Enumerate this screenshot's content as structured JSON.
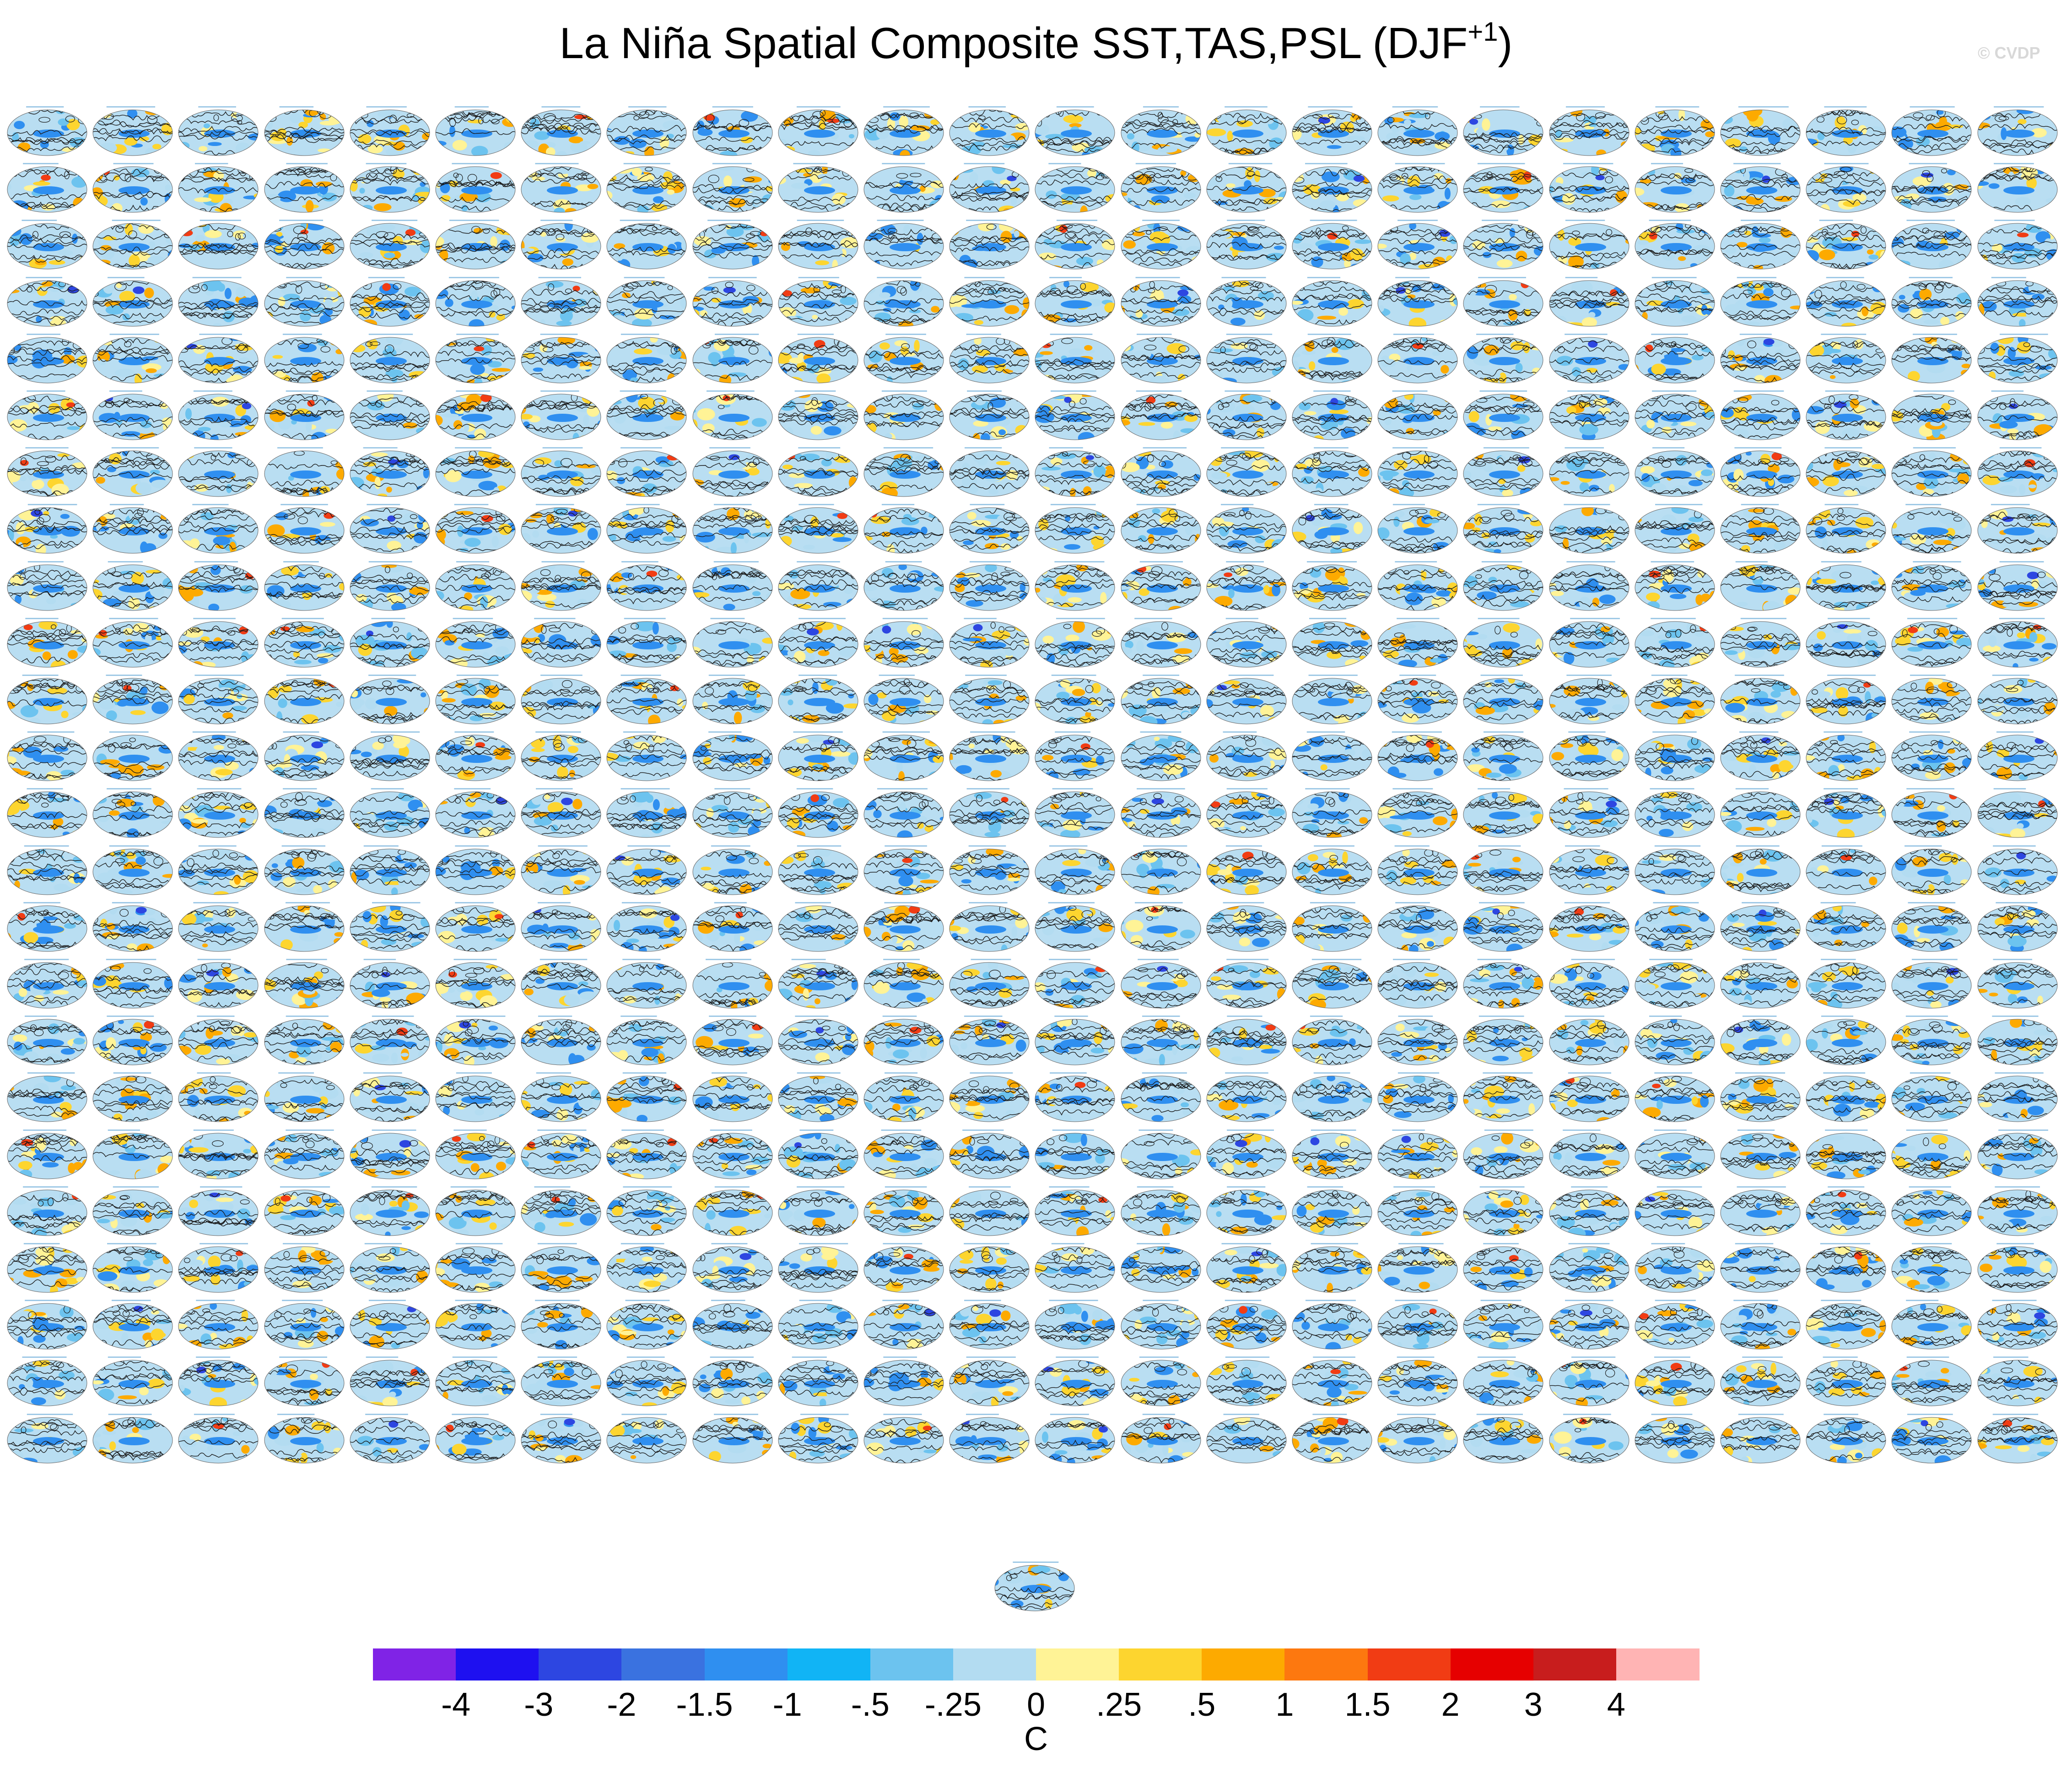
{
  "title": {
    "main": "La Niña Spatial Composite SST,TAS,PSL (DJF",
    "superscript": "+1",
    "close": ")"
  },
  "watermark": "© CVDP",
  "chart_data": {
    "type": "heatmap",
    "title": "La Niña Spatial Composite SST,TAS,PSL (DJF+1)",
    "panel_grid": {
      "rows": 24,
      "columns": 24,
      "extra_panels_below": 1
    },
    "colorbar": {
      "units": "C",
      "tick_labels": [
        "-4",
        "-3",
        "-2",
        "-1.5",
        "-1",
        "-.5",
        "-.25",
        "0",
        ".25",
        ".5",
        "1",
        "1.5",
        "2",
        "3",
        "4"
      ],
      "colors": [
        "#8023e6",
        "#1e10f0",
        "#2d46e1",
        "#3a72e0",
        "#2f8ff0",
        "#11b4f5",
        "#6cc3ef",
        "#b3dcf1",
        "#fff396",
        "#fdd52f",
        "#fdaa00",
        "#fd780f",
        "#f13c14",
        "#e60000",
        "#c81d1d",
        "#ffb4b4"
      ]
    },
    "legend": "bottom"
  }
}
